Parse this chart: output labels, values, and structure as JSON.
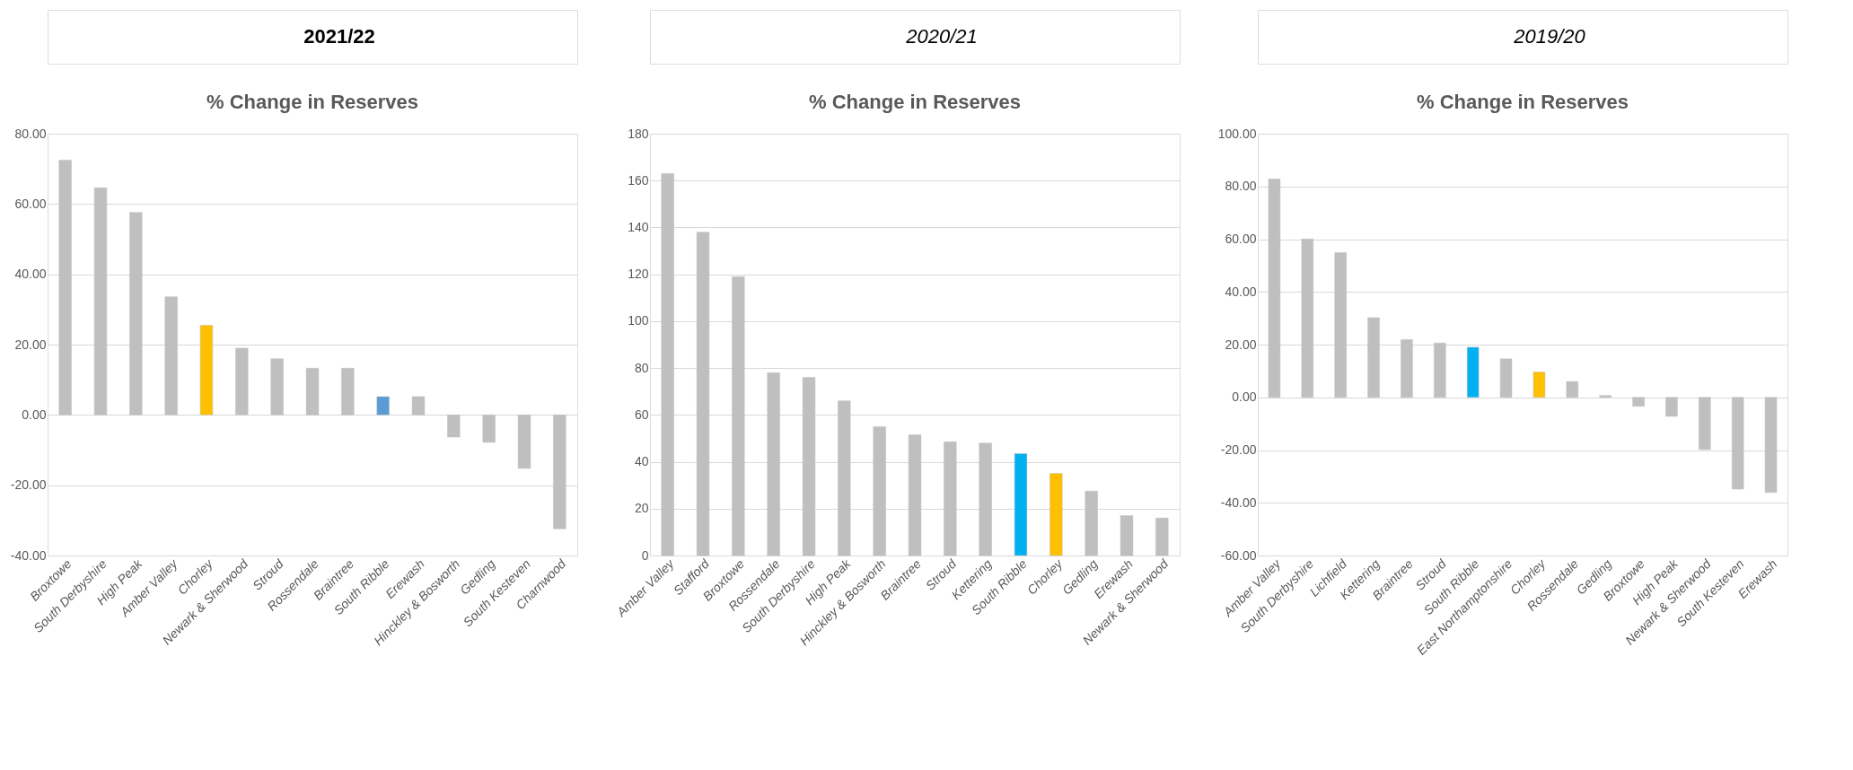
{
  "chart_data": [
    {
      "type": "bar",
      "annotations": [
        "2021/22"
      ],
      "title": "% Change in Reserves",
      "categories": [
        "Broxtowe",
        "South Derbyshire",
        "High Peak",
        "Amber Valley",
        "Chorley",
        "Newark & Sherwood",
        "Stroud",
        "Rossendale",
        "Braintree",
        "South Ribble",
        "Erewash",
        "Hinckley & Bosworth",
        "Gedling",
        "South Kesteven",
        "Charnwood"
      ],
      "values": [
        72.5,
        64.6,
        57.6,
        33.6,
        25.5,
        19.0,
        16.0,
        13.3,
        13.3,
        5.2,
        5.2,
        -6.3,
        -7.8,
        -15.2,
        -32.4
      ],
      "colors": [
        "#bfbfbf",
        "#bfbfbf",
        "#bfbfbf",
        "#bfbfbf",
        "#ffc000",
        "#bfbfbf",
        "#bfbfbf",
        "#bfbfbf",
        "#bfbfbf",
        "#5b9bd5",
        "#bfbfbf",
        "#bfbfbf",
        "#bfbfbf",
        "#bfbfbf",
        "#bfbfbf"
      ],
      "ylim": [
        -40,
        80
      ],
      "yticks": [
        {
          "value": -40,
          "label": "-40.00"
        },
        {
          "value": -20,
          "label": "-20.00"
        },
        {
          "value": 0,
          "label": "0.00"
        },
        {
          "value": 20,
          "label": "20.00"
        },
        {
          "value": 40,
          "label": "40.00"
        },
        {
          "value": 60,
          "label": "60.00"
        },
        {
          "value": 80,
          "label": "80.00"
        }
      ],
      "grid": "y",
      "legend": false
    },
    {
      "type": "bar",
      "annotations": [
        "2020/21"
      ],
      "title": "% Change in Reserves",
      "categories": [
        "Amber Valley",
        "Stafford",
        "Broxtowe",
        "Rossendale",
        "South Derbyshire",
        "High Peak",
        "Hinckley & Bosworth",
        "Braintree",
        "Stroud",
        "Kettering",
        "South Ribble",
        "Chorley",
        "Gedling",
        "Erewash",
        "Newark & Sherwood"
      ],
      "values": [
        163,
        138,
        119,
        78,
        76,
        66,
        55,
        51.5,
        48.5,
        48,
        43.5,
        35,
        27.5,
        17,
        16
      ],
      "colors": [
        "#bfbfbf",
        "#bfbfbf",
        "#bfbfbf",
        "#bfbfbf",
        "#bfbfbf",
        "#bfbfbf",
        "#bfbfbf",
        "#bfbfbf",
        "#bfbfbf",
        "#bfbfbf",
        "#00b0f0",
        "#ffc000",
        "#bfbfbf",
        "#bfbfbf",
        "#bfbfbf"
      ],
      "ylim": [
        0,
        180
      ],
      "yticks": [
        0,
        20,
        40,
        60,
        80,
        100,
        120,
        140,
        160,
        180
      ],
      "grid": "y",
      "legend": false
    },
    {
      "type": "bar",
      "annotations": [
        "2019/20"
      ],
      "title": "% Change in Reserves",
      "categories": [
        "Amber Valley",
        "South Derbyshire",
        "Lichfield",
        "Kettering",
        "Braintree",
        "Stroud",
        "South Ribble",
        "East Northamptonshire",
        "Chorley",
        "Rossendale",
        "Gedling",
        "Broxtowe",
        "High Peak",
        "Newark & Sherwood",
        "South Kesteven",
        "Erewash"
      ],
      "values": [
        82.8,
        60.1,
        54.9,
        30.2,
        21.9,
        20.6,
        19.0,
        14.6,
        9.6,
        6.0,
        0.7,
        -3.4,
        -7.2,
        -19.8,
        -34.8,
        -36.1
      ],
      "colors": [
        "#bfbfbf",
        "#bfbfbf",
        "#bfbfbf",
        "#bfbfbf",
        "#bfbfbf",
        "#bfbfbf",
        "#00b0f0",
        "#bfbfbf",
        "#ffc000",
        "#bfbfbf",
        "#bfbfbf",
        "#bfbfbf",
        "#bfbfbf",
        "#bfbfbf",
        "#bfbfbf",
        "#bfbfbf"
      ],
      "ylim": [
        -60,
        100
      ],
      "yticks": [
        {
          "value": -60,
          "label": "-60.00"
        },
        {
          "value": -40,
          "label": "-40.00"
        },
        {
          "value": -20,
          "label": "-20.00"
        },
        {
          "value": 0,
          "label": "0.00"
        },
        {
          "value": 20,
          "label": "20.00"
        },
        {
          "value": 40,
          "label": "40.00"
        },
        {
          "value": 60,
          "label": "60.00"
        },
        {
          "value": 80,
          "label": "80.00"
        },
        {
          "value": 100,
          "label": "100.00"
        }
      ],
      "grid": "y",
      "legend": false
    }
  ]
}
